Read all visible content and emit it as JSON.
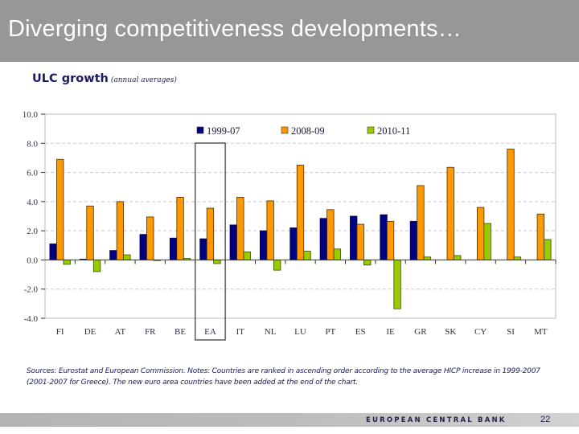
{
  "slide": {
    "title": "Diverging competitiveness developments…",
    "footer_org": "EUROPEAN CENTRAL BANK",
    "page_number": "22"
  },
  "chart_heading": {
    "main": "ULC growth",
    "sub": "(annual averages)"
  },
  "notes": "Sources: Eurostat and European Commission. Notes: Countries are ranked in ascending order according to the average HICP increase in 1999-2007 (2001-2007 for Greece). The new euro area countries have been added at the end of the chart.",
  "colors": {
    "series_1999_07": "#000080",
    "series_2008_09": "#ff9900",
    "series_2010_11": "#99cc00",
    "title_bar": "#979797"
  },
  "chart_data": {
    "type": "bar",
    "title": "ULC growth (annual averages)",
    "xlabel": "",
    "ylabel": "",
    "ylim": [
      -4.0,
      10.0
    ],
    "yticks": [
      10.0,
      8.0,
      6.0,
      4.0,
      2.0,
      0.0,
      -2.0,
      -4.0
    ],
    "ytick_labels": [
      "10.0",
      "8.0",
      "6.0",
      "4.0",
      "2.0",
      "0.0",
      "-2.0",
      "-4.0"
    ],
    "grid": true,
    "legend_position": "top",
    "highlighted_category": "EA",
    "categories": [
      "FI",
      "DE",
      "AT",
      "FR",
      "BE",
      "EA",
      "IT",
      "NL",
      "LU",
      "PT",
      "ES",
      "IE",
      "GR",
      "SK",
      "CY",
      "SI",
      "MT"
    ],
    "series": [
      {
        "name": "1999-07",
        "color": "#000080",
        "values": [
          1.1,
          0.05,
          0.65,
          1.75,
          1.5,
          1.45,
          2.4,
          2.0,
          2.2,
          2.85,
          3.0,
          3.1,
          2.65,
          null,
          null,
          null,
          null
        ]
      },
      {
        "name": "2008-09",
        "color": "#ff9900",
        "values": [
          6.9,
          3.7,
          4.0,
          2.95,
          4.3,
          3.55,
          4.3,
          4.05,
          6.5,
          3.45,
          2.45,
          2.65,
          5.1,
          6.35,
          3.6,
          7.6,
          3.15
        ]
      },
      {
        "name": "2010-11",
        "color": "#99cc00",
        "values": [
          -0.3,
          -0.8,
          0.35,
          0.0,
          0.1,
          -0.25,
          0.55,
          -0.7,
          0.6,
          0.75,
          -0.35,
          -3.35,
          0.2,
          0.3,
          2.5,
          0.2,
          1.4
        ]
      }
    ]
  }
}
